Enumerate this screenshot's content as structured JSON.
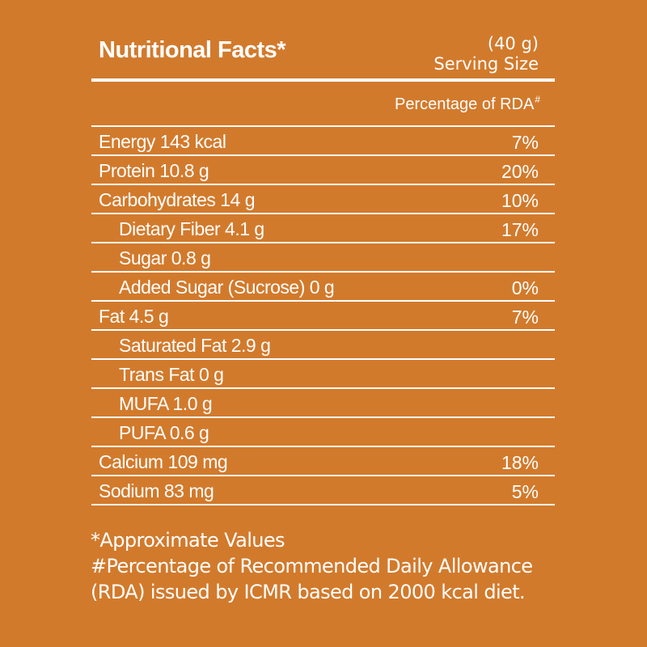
{
  "header": {
    "title": "Nutritional Facts*",
    "serving_amount": "(40 g)",
    "serving_label": "Serving Size",
    "rda_label": "Percentage of RDA",
    "rda_mark": "#"
  },
  "rows": [
    {
      "label": "Energy 143 kcal",
      "pct": "7%",
      "sub": false
    },
    {
      "label": "Protein 10.8 g",
      "pct": "20%",
      "sub": false
    },
    {
      "label": "Carbohydrates 14 g",
      "pct": "10%",
      "sub": false
    },
    {
      "label": "Dietary Fiber 4.1 g",
      "pct": "17%",
      "sub": true
    },
    {
      "label": "Sugar 0.8 g",
      "pct": "",
      "sub": true
    },
    {
      "label": "Added Sugar (Sucrose) 0 g",
      "pct": "0%",
      "sub": true
    },
    {
      "label": "Fat 4.5 g",
      "pct": "7%",
      "sub": false
    },
    {
      "label": "Saturated Fat 2.9 g",
      "pct": "",
      "sub": true
    },
    {
      "label": "Trans Fat 0 g",
      "pct": "",
      "sub": true
    },
    {
      "label": "MUFA 1.0 g",
      "pct": "",
      "sub": true
    },
    {
      "label": "PUFA 0.6 g",
      "pct": "",
      "sub": true
    },
    {
      "label": "Calcium 109 mg",
      "pct": "18%",
      "sub": false
    },
    {
      "label": "Sodium 83 mg",
      "pct": "5%",
      "sub": false
    }
  ],
  "footnotes": {
    "line1": "*Approximate Values",
    "line2": "#Percentage of Recommended Daily Allowance",
    "line3": "(RDA) issued by ICMR based on 2000 kcal diet."
  },
  "colors": {
    "background": "#d27a2c",
    "text": "#ffffff"
  }
}
